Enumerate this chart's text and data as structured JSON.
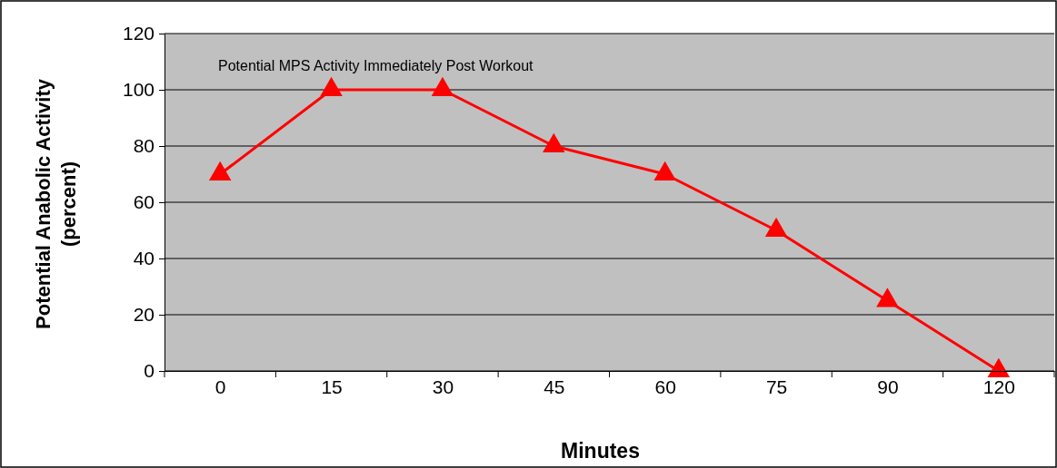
{
  "chart_data": {
    "type": "line",
    "title": "Potential MPS Activity Immediately Post Workout",
    "xlabel": "Minutes",
    "ylabel": "Potential Anabolic Activity\n(percent)",
    "categories": [
      "0",
      "15",
      "30",
      "45",
      "60",
      "75",
      "90",
      "120"
    ],
    "series": [
      {
        "color": "#ff0000",
        "values": [
          70,
          100,
          100,
          80,
          70,
          50,
          25,
          0
        ]
      }
    ],
    "ylim": [
      0,
      120
    ],
    "yticks": [
      0,
      20,
      40,
      60,
      80,
      100,
      120
    ],
    "grid": "y",
    "marker": "triangle",
    "line_style": "solid"
  }
}
